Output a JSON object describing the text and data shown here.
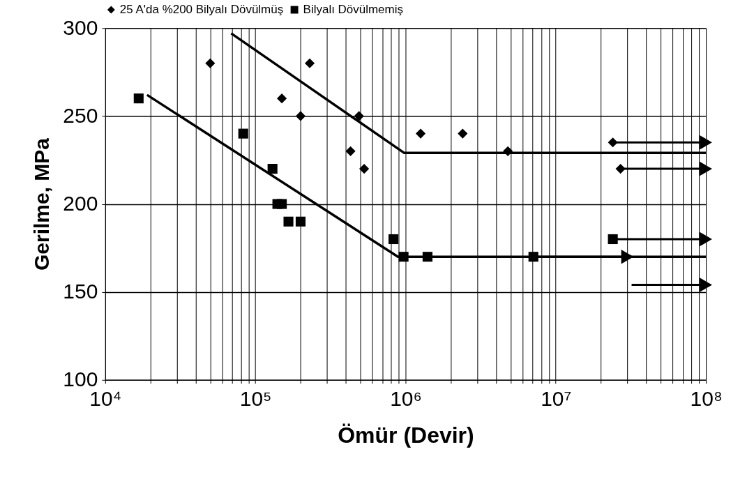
{
  "chart_data": {
    "type": "scatter",
    "xlabel": "Ömür (Devir)",
    "ylabel": "Gerilme, MPa",
    "log": "x",
    "grid": true,
    "legend": "top",
    "xlim": [
      10000,
      100000000
    ],
    "ylim": [
      100,
      300
    ],
    "yticks": [
      100,
      150,
      200,
      250,
      300
    ],
    "xticks": [
      {
        "value": 10000,
        "label": "10⁴"
      },
      {
        "value": 20000,
        "label": null
      },
      {
        "value": 30000,
        "label": null
      },
      {
        "value": 40000,
        "label": null
      },
      {
        "value": 50000,
        "label": null
      },
      {
        "value": 60000,
        "label": null
      },
      {
        "value": 70000,
        "label": null
      },
      {
        "value": 80000,
        "label": null
      },
      {
        "value": 90000,
        "label": null
      },
      {
        "value": 100000,
        "label": "10⁵"
      },
      {
        "value": 200000,
        "label": null
      },
      {
        "value": 300000,
        "label": null
      },
      {
        "value": 400000,
        "label": null
      },
      {
        "value": 500000,
        "label": null
      },
      {
        "value": 600000,
        "label": null
      },
      {
        "value": 700000,
        "label": null
      },
      {
        "value": 800000,
        "label": null
      },
      {
        "value": 900000,
        "label": null
      },
      {
        "value": 1000000,
        "label": "10⁶"
      },
      {
        "value": 2000000,
        "label": null
      },
      {
        "value": 3000000,
        "label": null
      },
      {
        "value": 4000000,
        "label": null
      },
      {
        "value": 5000000,
        "label": null
      },
      {
        "value": 6000000,
        "label": null
      },
      {
        "value": 7000000,
        "label": null
      },
      {
        "value": 8000000,
        "label": null
      },
      {
        "value": 9000000,
        "label": null
      },
      {
        "value": 10000000,
        "label": "10⁷"
      },
      {
        "value": 20000000,
        "label": null
      },
      {
        "value": 30000000,
        "label": null
      },
      {
        "value": 40000000,
        "label": null
      },
      {
        "value": 50000000,
        "label": null
      },
      {
        "value": 60000000,
        "label": null
      },
      {
        "value": 70000000,
        "label": null
      },
      {
        "value": 80000000,
        "label": null
      },
      {
        "value": 90000000,
        "label": null
      },
      {
        "value": 100000000,
        "label": "10⁸"
      }
    ],
    "series": [
      {
        "name": "25 A'da %200 Bilyalı Dövülmüş",
        "marker": "diamond",
        "color": "#000000",
        "x": [
          50000,
          150000,
          200000,
          230000,
          430000,
          490000,
          530000,
          1260000,
          2400000,
          4800000,
          24000000,
          27000000
        ],
        "values": [
          280,
          260,
          250,
          280,
          230,
          250,
          220,
          240,
          240,
          230,
          235,
          220
        ]
      },
      {
        "name": "Bilyalı Dövülmemiş",
        "marker": "square",
        "color": "#000000",
        "x": [
          16700,
          83000,
          130000,
          140000,
          150000,
          166000,
          200000,
          830000,
          970000,
          1400000,
          7100000,
          24000000
        ],
        "values": [
          260,
          240,
          220,
          200,
          200,
          190,
          190,
          180,
          170,
          170,
          170,
          180
        ]
      },
      {
        "type": "line",
        "color": "#000000",
        "x": [
          69000,
          980000,
          100000000
        ],
        "values": [
          297,
          229,
          229
        ]
      },
      {
        "type": "line",
        "color": "#000000",
        "x": [
          19000,
          890000,
          100000000
        ],
        "values": [
          262,
          170,
          170
        ]
      },
      {
        "type": "line",
        "marker": "triangle",
        "color": "#000000",
        "x": [
          24000000,
          100000000
        ],
        "values": [
          235,
          235
        ]
      },
      {
        "type": "line",
        "marker": "triangle",
        "color": "#000000",
        "x": [
          27000000,
          100000000
        ],
        "values": [
          220,
          220
        ]
      },
      {
        "type": "line",
        "marker": "triangle",
        "color": "#000000",
        "x": [
          24000000,
          100000000
        ],
        "values": [
          180,
          180
        ]
      },
      {
        "type": "line",
        "marker": "triangle",
        "color": "#000000",
        "x": [
          7100000,
          30000000
        ],
        "values": [
          170,
          170
        ]
      },
      {
        "type": "line",
        "marker": "triangle",
        "color": "#000000",
        "x": [
          32000000,
          100000000
        ],
        "values": [
          154,
          154
        ]
      }
    ]
  }
}
